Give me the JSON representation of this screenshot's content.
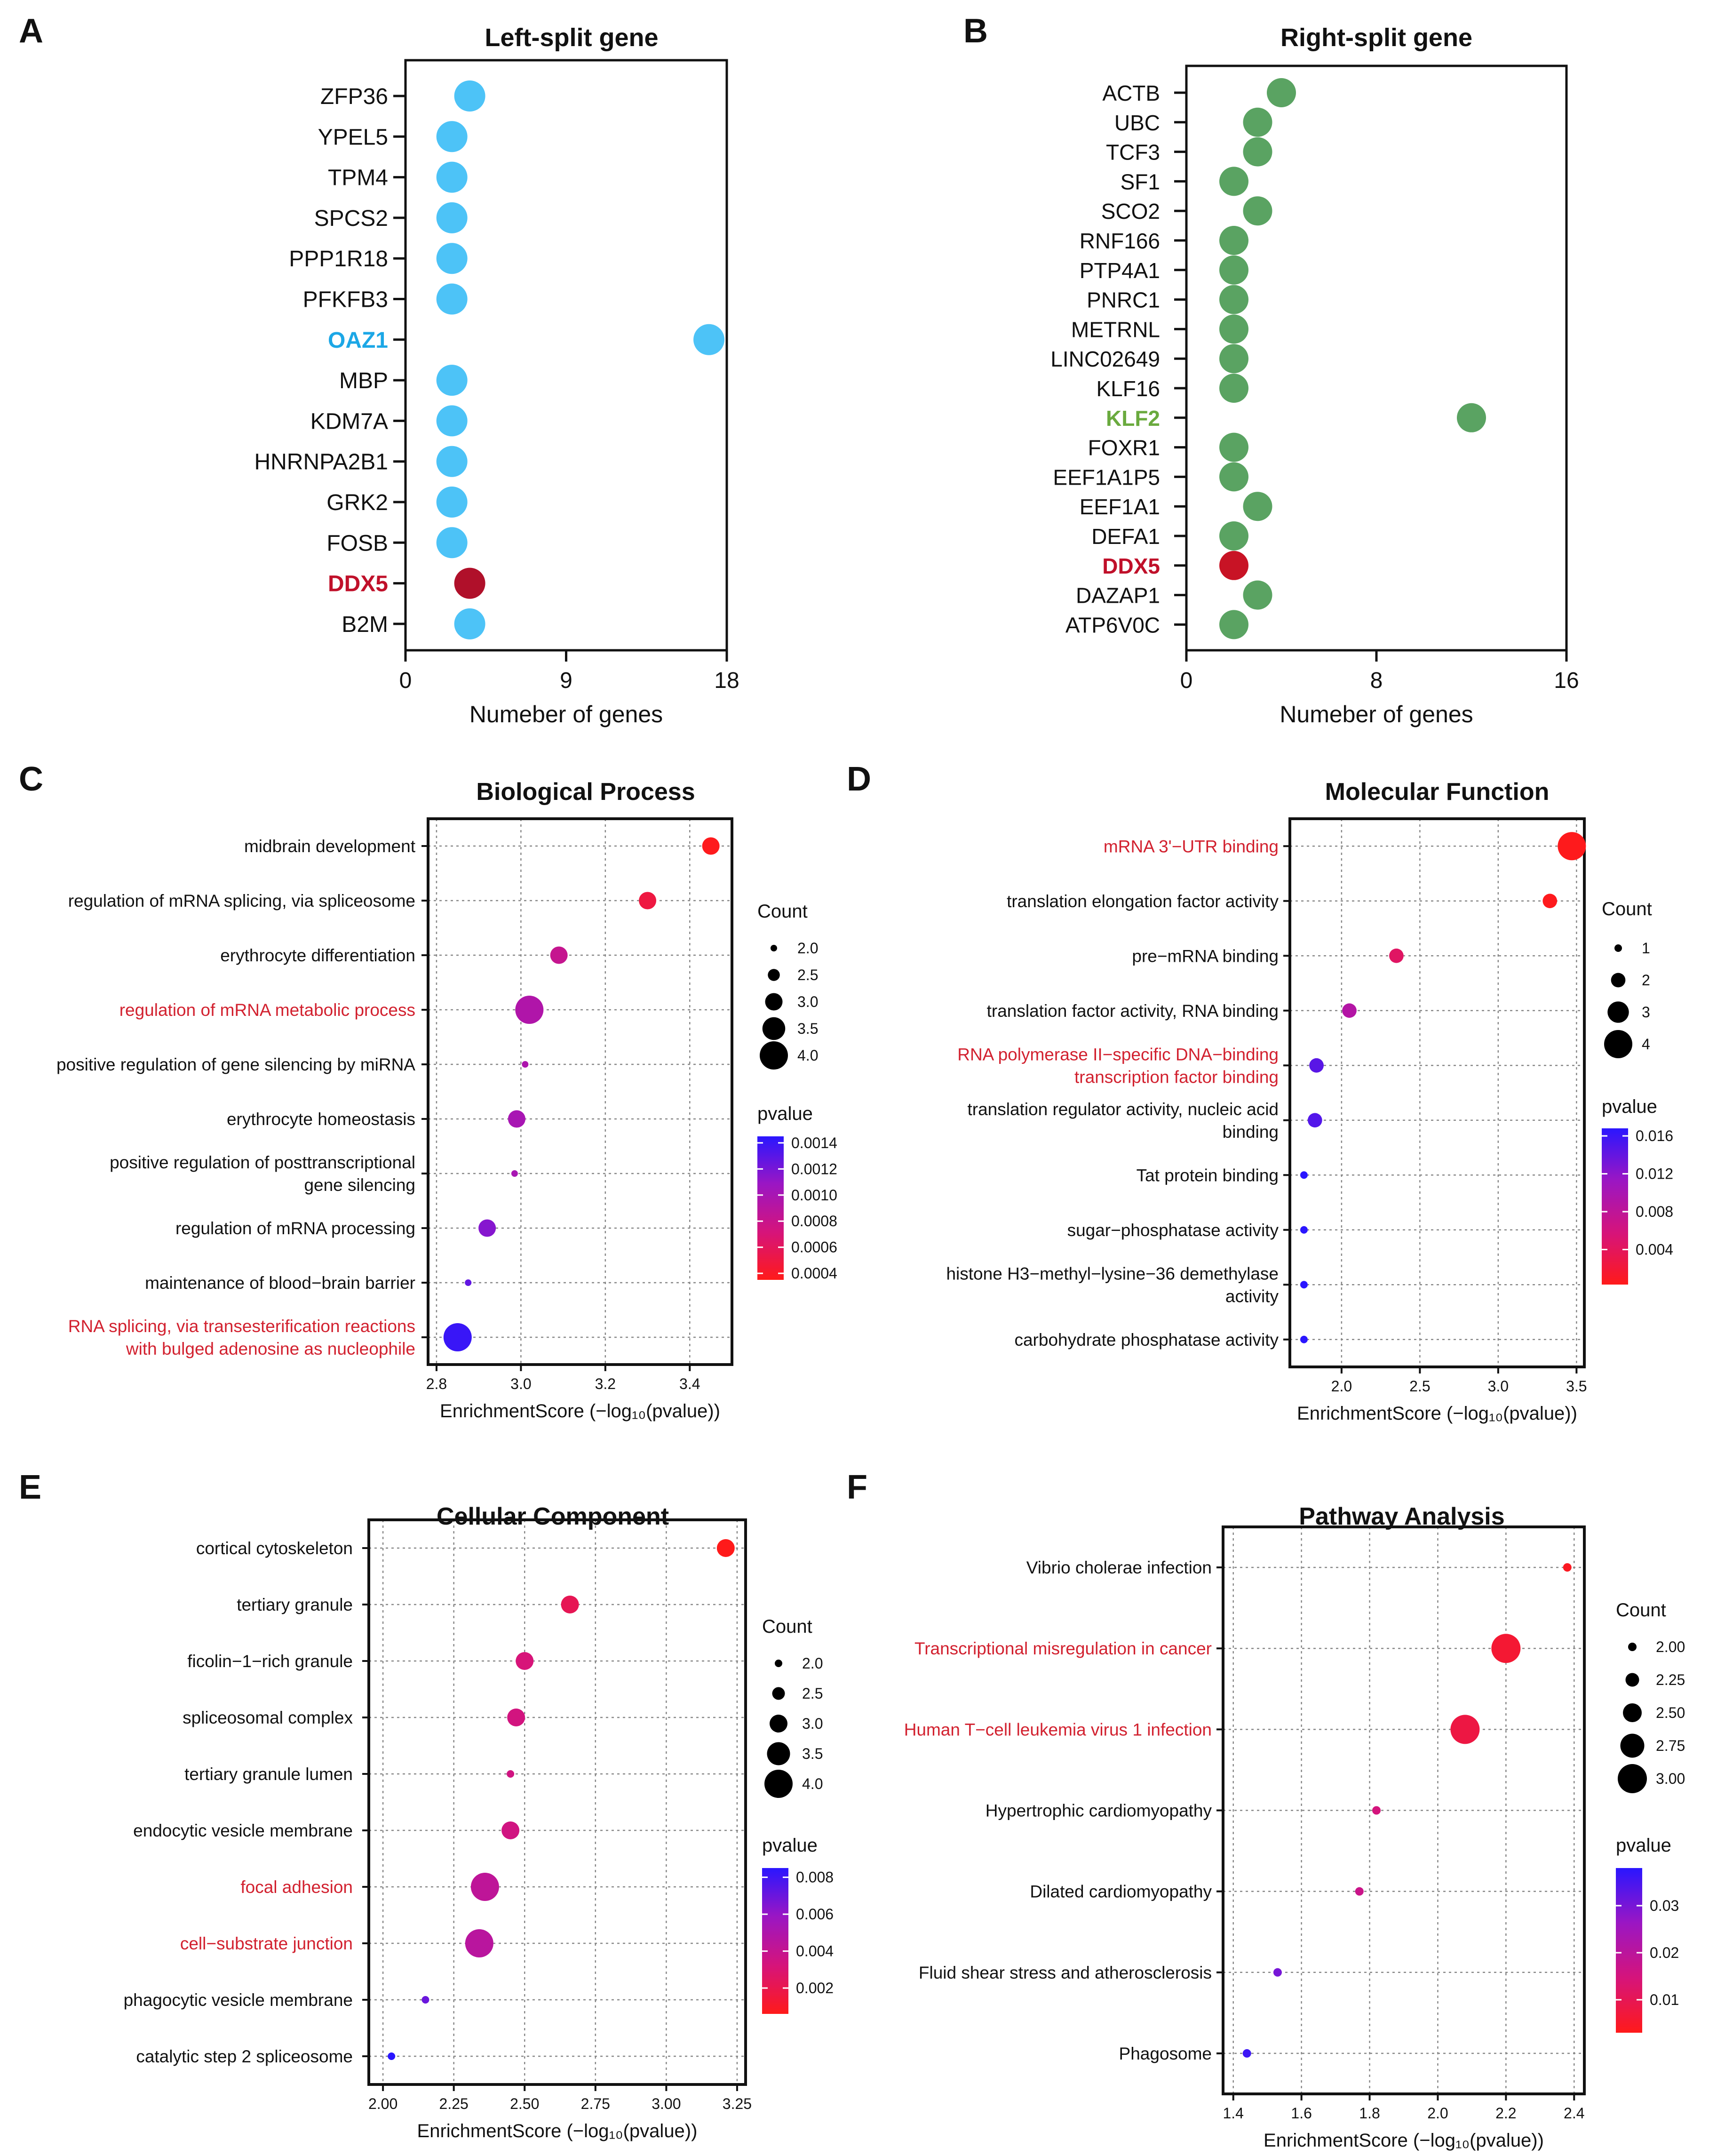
{
  "colors": {
    "blue_dot": "#4dc3f7",
    "green_dot": "#5aa362",
    "highlight_red": "#c0102a",
    "oaz1_blue": "#1ca7e6",
    "klf2_green": "#6aaa3e",
    "go_red": "#d2212f"
  },
  "chart_data": [
    {
      "panel": "A",
      "type": "dot",
      "title": "Left-split gene",
      "xlabel": "Numeber of genes",
      "xlim": [
        0,
        18
      ],
      "xticks": [
        "0",
        "9",
        "18"
      ],
      "dot_color": "#4dc3f7",
      "categories": [
        "ZFP36",
        "YPEL5",
        "TPM4",
        "SPCS2",
        "PPP1R18",
        "PFKFB3",
        "OAZ1",
        "MBP",
        "KDM7A",
        "HNRNPA2B1",
        "GRK2",
        "FOSB",
        "DDX5",
        "B2M"
      ],
      "values": [
        3.6,
        2.6,
        2.6,
        2.6,
        2.6,
        2.6,
        17.0,
        2.6,
        2.6,
        2.6,
        2.6,
        2.6,
        3.6,
        3.6
      ],
      "highlights": [
        {
          "label": "OAZ1",
          "label_color": "#1ca7e6",
          "dot_color": "#4dc3f7"
        },
        {
          "label": "DDX5",
          "label_color": "#c0102a",
          "dot_color": "#b0102a"
        }
      ]
    },
    {
      "panel": "B",
      "type": "dot",
      "title": "Right-split gene",
      "xlabel": "Numeber of genes",
      "xlim": [
        0,
        16
      ],
      "xticks": [
        "0",
        "8",
        "16"
      ],
      "dot_color": "#5aa362",
      "categories": [
        "ACTB",
        "UBC",
        "TCF3",
        "SF1",
        "SCO2",
        "RNF166",
        "PTP4A1",
        "PNRC1",
        "METRNL",
        "LINC02649",
        "KLF16",
        "KLF2",
        "FOXR1",
        "EEF1A1P5",
        "EEF1A1",
        "DEFA1",
        "DDX5",
        "DAZAP1",
        "ATP6V0C"
      ],
      "values": [
        4.0,
        3.0,
        3.0,
        2.0,
        3.0,
        2.0,
        2.0,
        2.0,
        2.0,
        2.0,
        2.0,
        12.0,
        2.0,
        2.0,
        3.0,
        2.0,
        2.0,
        3.0,
        2.0
      ],
      "highlights": [
        {
          "label": "KLF2",
          "label_color": "#6aaa3e",
          "dot_color": "#5aa362"
        },
        {
          "label": "DDX5",
          "label_color": "#c0102a",
          "dot_color": "#c81325"
        }
      ]
    },
    {
      "panel": "C",
      "type": "bubble",
      "title": "Biological Process",
      "xlabel": "EnrichmentScore (−log₁₀(pvalue))",
      "xlim": [
        2.78,
        3.5
      ],
      "xticks": [
        "2.8",
        "3.0",
        "3.2",
        "3.4"
      ],
      "xtick_values": [
        2.8,
        3.0,
        3.2,
        3.4
      ],
      "count_title": "Count",
      "count_levels": [
        "2.0",
        "2.5",
        "3.0",
        "3.5",
        "4.0"
      ],
      "count_range": [
        2,
        4
      ],
      "pvalue_title": "pvalue",
      "pvalue_ticks": [
        "0.0014",
        "0.0012",
        "0.0010",
        "0.0008",
        "0.0006",
        "0.0004"
      ],
      "pvalue_range": [
        0.00035,
        0.00145
      ],
      "terms": [
        {
          "label": "midbrain development",
          "x": 3.45,
          "count": 3,
          "pvalue": 0.00036,
          "highlight": false
        },
        {
          "label": "regulation of mRNA splicing, via spliceosome",
          "x": 3.3,
          "count": 3,
          "pvalue": 0.0005,
          "highlight": false
        },
        {
          "label": "erythrocyte differentiation",
          "x": 3.09,
          "count": 3,
          "pvalue": 0.00082,
          "highlight": false
        },
        {
          "label": "regulation of mRNA metabolic process",
          "x": 3.02,
          "count": 4,
          "pvalue": 0.00095,
          "highlight": true
        },
        {
          "label": "positive regulation of gene silencing by miRNA",
          "x": 3.01,
          "count": 2,
          "pvalue": 0.00097,
          "highlight": false
        },
        {
          "label": "erythrocyte homeostasis",
          "x": 2.99,
          "count": 3,
          "pvalue": 0.001,
          "highlight": false
        },
        {
          "label": "positive regulation of posttranscriptional|gene silencing",
          "x": 2.985,
          "count": 2,
          "pvalue": 0.001,
          "highlight": false
        },
        {
          "label": "regulation of mRNA processing",
          "x": 2.92,
          "count": 3,
          "pvalue": 0.00115,
          "highlight": false
        },
        {
          "label": "maintenance of blood−brain barrier",
          "x": 2.875,
          "count": 2,
          "pvalue": 0.00127,
          "highlight": false
        },
        {
          "label": "RNA splicing, via transesterification reactions|with bulged adenosine as nucleophile",
          "x": 2.85,
          "count": 4,
          "pvalue": 0.0014,
          "highlight": true
        }
      ]
    },
    {
      "panel": "D",
      "type": "bubble",
      "title": "Molecular Function",
      "xlabel": "EnrichmentScore (−log₁₀(pvalue))",
      "xlim": [
        1.67,
        3.55
      ],
      "xticks": [
        "2.0",
        "2.5",
        "3.0",
        "3.5"
      ],
      "xtick_values": [
        2.0,
        2.5,
        3.0,
        3.5
      ],
      "count_title": "Count",
      "count_levels": [
        "1",
        "2",
        "3",
        "4"
      ],
      "count_range": [
        1,
        4
      ],
      "pvalue_title": "pvalue",
      "pvalue_ticks": [
        "0.016",
        "0.012",
        "0.008",
        "0.004"
      ],
      "pvalue_range": [
        0.0003,
        0.0168
      ],
      "terms": [
        {
          "label": "mRNA 3'−UTR binding",
          "x": 3.47,
          "count": 4,
          "pvalue": 0.0004,
          "highlight": true
        },
        {
          "label": "translation elongation factor activity",
          "x": 3.33,
          "count": 2,
          "pvalue": 0.0005,
          "highlight": false
        },
        {
          "label": "pre−mRNA binding",
          "x": 2.35,
          "count": 2,
          "pvalue": 0.0045,
          "highlight": false
        },
        {
          "label": "translation factor activity, RNA binding",
          "x": 2.05,
          "count": 2,
          "pvalue": 0.009,
          "highlight": false
        },
        {
          "label": "RNA polymerase II−specific DNA−binding|transcription factor binding",
          "x": 1.84,
          "count": 2,
          "pvalue": 0.0145,
          "highlight": true
        },
        {
          "label": "translation regulator activity, nucleic acid|binding",
          "x": 1.83,
          "count": 2,
          "pvalue": 0.0148,
          "highlight": false
        },
        {
          "label": "Tat protein binding",
          "x": 1.76,
          "count": 1,
          "pvalue": 0.0168,
          "highlight": false
        },
        {
          "label": "sugar−phosphatase activity",
          "x": 1.76,
          "count": 1,
          "pvalue": 0.0168,
          "highlight": false
        },
        {
          "label": "histone H3−methyl−lysine−36 demethylase|activity",
          "x": 1.76,
          "count": 1,
          "pvalue": 0.0168,
          "highlight": false
        },
        {
          "label": "carbohydrate phosphatase activity",
          "x": 1.76,
          "count": 1,
          "pvalue": 0.0168,
          "highlight": false
        }
      ]
    },
    {
      "panel": "E",
      "type": "bubble",
      "title": "Cellular Component",
      "xlabel": "EnrichmentScore (−log₁₀(pvalue))",
      "xlim": [
        1.95,
        3.28
      ],
      "xticks": [
        "2.00",
        "2.25",
        "2.50",
        "2.75",
        "3.00",
        "3.25"
      ],
      "xtick_values": [
        2.0,
        2.25,
        2.5,
        2.75,
        3.0,
        3.25
      ],
      "count_title": "Count",
      "count_levels": [
        "2.0",
        "2.5",
        "3.0",
        "3.5",
        "4.0"
      ],
      "count_range": [
        2,
        4
      ],
      "pvalue_title": "pvalue",
      "pvalue_ticks": [
        "0.008",
        "0.006",
        "0.004",
        "0.002"
      ],
      "pvalue_range": [
        0.0006,
        0.0085
      ],
      "terms": [
        {
          "label": "cortical cytoskeleton",
          "x": 3.21,
          "count": 3,
          "pvalue": 0.0006,
          "highlight": false
        },
        {
          "label": "tertiary granule",
          "x": 2.66,
          "count": 3,
          "pvalue": 0.0022,
          "highlight": false
        },
        {
          "label": "ficolin−1−rich granule",
          "x": 2.5,
          "count": 3,
          "pvalue": 0.0032,
          "highlight": false
        },
        {
          "label": "spliceosomal complex",
          "x": 2.47,
          "count": 3,
          "pvalue": 0.0034,
          "highlight": false
        },
        {
          "label": "tertiary granule lumen",
          "x": 2.45,
          "count": 2,
          "pvalue": 0.0035,
          "highlight": false
        },
        {
          "label": "endocytic vesicle membrane",
          "x": 2.45,
          "count": 3,
          "pvalue": 0.0035,
          "highlight": false
        },
        {
          "label": "focal adhesion",
          "x": 2.36,
          "count": 4,
          "pvalue": 0.0043,
          "highlight": true
        },
        {
          "label": "cell−substrate junction",
          "x": 2.34,
          "count": 4,
          "pvalue": 0.0045,
          "highlight": true
        },
        {
          "label": "phagocytic vesicle membrane",
          "x": 2.15,
          "count": 2,
          "pvalue": 0.007,
          "highlight": false
        },
        {
          "label": "catalytic step 2 spliceosome",
          "x": 2.03,
          "count": 2,
          "pvalue": 0.0085,
          "highlight": false
        }
      ]
    },
    {
      "panel": "F",
      "type": "bubble",
      "title": "Pathway Analysis",
      "xlabel": "EnrichmentScore (−log₁₀(pvalue))",
      "xlim": [
        1.37,
        2.43
      ],
      "xticks": [
        "1.4",
        "1.6",
        "1.8",
        "2.0",
        "2.2",
        "2.4"
      ],
      "xtick_values": [
        1.4,
        1.6,
        1.8,
        2.0,
        2.2,
        2.4
      ],
      "count_title": "Count",
      "count_levels": [
        "2.00",
        "2.25",
        "2.50",
        "2.75",
        "3.00"
      ],
      "count_range": [
        2,
        3
      ],
      "pvalue_title": "pvalue",
      "pvalue_ticks": [
        "0.03",
        "0.02",
        "0.01"
      ],
      "pvalue_range": [
        0.003,
        0.038
      ],
      "terms": [
        {
          "label": "Vibrio cholerae infection",
          "x": 2.38,
          "count": 2,
          "pvalue": 0.004,
          "highlight": false
        },
        {
          "label": "Transcriptional misregulation in cancer",
          "x": 2.2,
          "count": 3,
          "pvalue": 0.006,
          "highlight": true
        },
        {
          "label": "Human T−cell leukemia virus 1 infection",
          "x": 2.08,
          "count": 3,
          "pvalue": 0.008,
          "highlight": true
        },
        {
          "label": "Hypertrophic cardiomyopathy",
          "x": 1.82,
          "count": 2,
          "pvalue": 0.015,
          "highlight": false
        },
        {
          "label": "Dilated cardiomyopathy",
          "x": 1.77,
          "count": 2,
          "pvalue": 0.017,
          "highlight": false
        },
        {
          "label": "Fluid shear stress and atherosclerosis",
          "x": 1.53,
          "count": 2,
          "pvalue": 0.03,
          "highlight": false
        },
        {
          "label": "Phagosome",
          "x": 1.44,
          "count": 2,
          "pvalue": 0.036,
          "highlight": false
        }
      ]
    }
  ]
}
